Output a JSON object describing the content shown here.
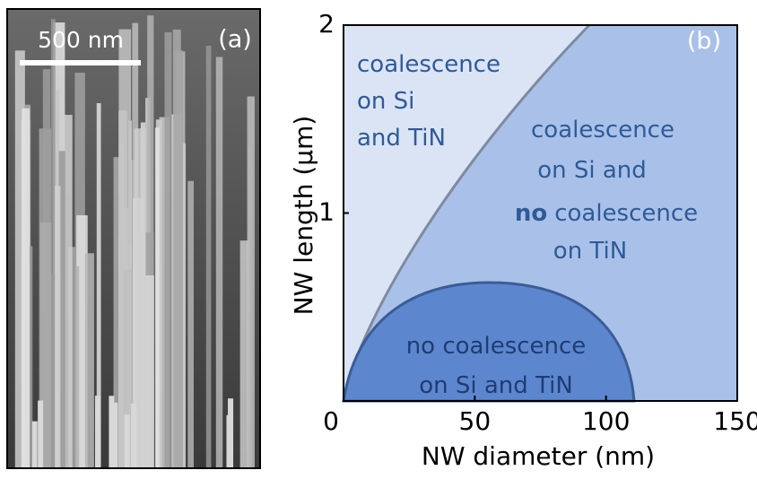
{
  "panel_a": {
    "label": "(a)",
    "scale_bar": "500 nm"
  },
  "chart_data": {
    "type": "phase-diagram",
    "panel_label": "(b)",
    "x_label": "NW diameter (nm)",
    "y_label": "NW length (µm)",
    "xlim": [
      0,
      150
    ],
    "ylim": [
      0,
      2
    ],
    "xticks": [
      0,
      50,
      100,
      150
    ],
    "yticks": [
      1,
      2
    ],
    "regions": [
      {
        "lines": [
          [
            "coalescence"
          ],
          [
            "on Si"
          ],
          [
            "and TiN"
          ]
        ]
      },
      {
        "lines": [
          [
            "coalescence"
          ],
          [
            "on Si and"
          ],
          [
            "no",
            "coalescence"
          ],
          [
            "on TiN"
          ]
        ]
      },
      {
        "lines": [
          [
            "no coalescence"
          ],
          [
            "on Si and TiN"
          ]
        ]
      }
    ]
  }
}
